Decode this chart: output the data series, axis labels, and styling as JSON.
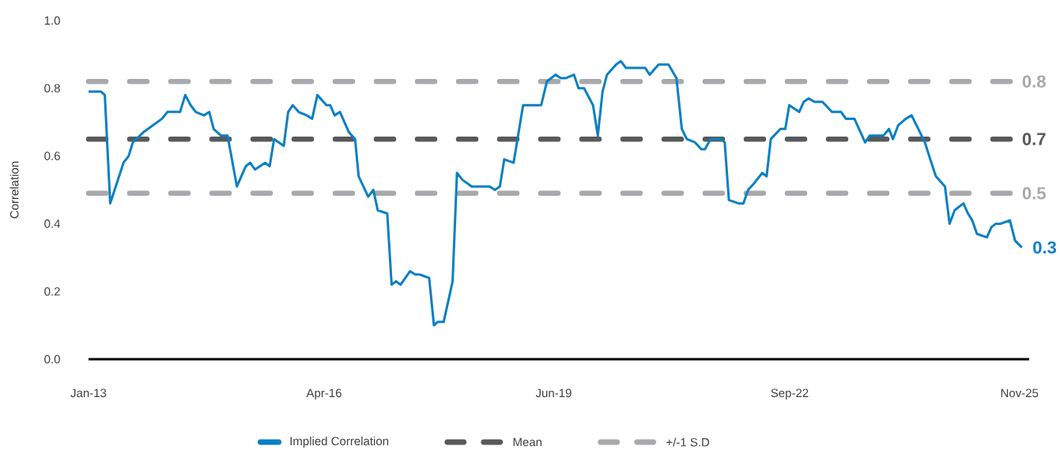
{
  "chart_data": {
    "type": "line",
    "ylabel": "Correlation",
    "x": [
      "2013-01-01",
      "2013-03-05",
      "2013-03-24",
      "2013-04-20",
      "2013-06-26",
      "2013-07-22",
      "2013-08-12",
      "2013-10-04",
      "2013-11-20",
      "2014-01-06",
      "2014-02-02",
      "2014-04-07",
      "2014-05-03",
      "2014-05-30",
      "2014-06-25",
      "2014-08-05",
      "2014-09-01",
      "2014-09-23",
      "2014-10-30",
      "2014-12-02",
      "2015-01-18",
      "2015-03-04",
      "2015-03-26",
      "2015-04-19",
      "2015-06-09",
      "2015-07-02",
      "2015-07-24",
      "2015-09-11",
      "2015-10-03",
      "2015-10-26",
      "2015-11-25",
      "2016-01-05",
      "2016-02-01",
      "2016-02-27",
      "2016-04-13",
      "2016-05-02",
      "2016-05-24",
      "2016-06-20",
      "2016-08-04",
      "2016-09-04",
      "2016-09-22",
      "2016-11-09",
      "2016-12-05",
      "2016-12-27",
      "2017-02-13",
      "2017-03-07",
      "2017-03-29",
      "2017-04-21",
      "2017-06-08",
      "2017-07-04",
      "2017-07-27",
      "2017-09-12",
      "2017-10-06",
      "2017-10-24",
      "2017-11-24",
      "2018-01-08",
      "2018-01-30",
      "2018-02-26",
      "2018-04-14",
      "2018-07-13",
      "2018-08-09",
      "2018-09-03",
      "2018-09-25",
      "2018-11-11",
      "2018-12-29",
      "2019-03-30",
      "2019-04-28",
      "2019-06-10",
      "2019-07-07",
      "2019-08-02",
      "2019-09-11",
      "2019-10-04",
      "2019-11-01",
      "2019-12-16",
      "2020-01-09",
      "2020-02-02",
      "2020-02-24",
      "2020-04-10",
      "2020-05-04",
      "2020-05-30",
      "2020-09-04",
      "2020-09-26",
      "2020-11-10",
      "2020-12-30",
      "2021-02-08",
      "2021-03-07",
      "2021-04-01",
      "2021-05-13",
      "2021-06-13",
      "2021-07-02",
      "2021-07-29",
      "2021-09-21",
      "2021-10-09",
      "2021-10-30",
      "2021-12-18",
      "2022-01-11",
      "2022-02-04",
      "2022-03-07",
      "2022-04-16",
      "2022-05-08",
      "2022-05-29",
      "2022-07-17",
      "2022-08-10",
      "2022-08-30",
      "2022-10-19",
      "2022-11-11",
      "2022-12-05",
      "2023-01-04",
      "2023-02-13",
      "2023-04-02",
      "2023-05-18",
      "2023-06-11",
      "2023-07-24",
      "2023-09-16",
      "2023-10-09",
      "2023-12-17",
      "2024-01-14",
      "2024-02-03",
      "2024-02-29",
      "2024-04-08",
      "2024-05-07",
      "2024-07-13",
      "2024-08-09",
      "2024-09-06",
      "2024-10-22",
      "2024-11-14",
      "2024-12-10",
      "2025-01-23",
      "2025-02-15",
      "2025-03-08",
      "2025-04-01",
      "2025-05-21",
      "2025-06-13",
      "2025-07-05",
      "2025-07-29",
      "2025-09-14",
      "2025-10-10",
      "2025-11-13"
    ],
    "series": [
      {
        "name": "Implied Correlation",
        "color": "#0a7fc4",
        "values": [
          0.79,
          0.79,
          0.78,
          0.46,
          0.58,
          0.6,
          0.64,
          0.67,
          0.69,
          0.71,
          0.73,
          0.73,
          0.78,
          0.75,
          0.73,
          0.72,
          0.73,
          0.68,
          0.66,
          0.66,
          0.51,
          0.57,
          0.58,
          0.56,
          0.58,
          0.57,
          0.65,
          0.63,
          0.73,
          0.75,
          0.73,
          0.72,
          0.71,
          0.78,
          0.75,
          0.75,
          0.72,
          0.73,
          0.67,
          0.65,
          0.54,
          0.48,
          0.5,
          0.44,
          0.43,
          0.22,
          0.23,
          0.22,
          0.26,
          0.25,
          0.25,
          0.24,
          0.1,
          0.11,
          0.11,
          0.23,
          0.55,
          0.53,
          0.51,
          0.51,
          0.5,
          0.51,
          0.59,
          0.58,
          0.75,
          0.75,
          0.82,
          0.84,
          0.83,
          0.83,
          0.84,
          0.8,
          0.8,
          0.75,
          0.66,
          0.79,
          0.84,
          0.87,
          0.88,
          0.86,
          0.86,
          0.84,
          0.87,
          0.87,
          0.83,
          0.68,
          0.65,
          0.64,
          0.62,
          0.62,
          0.65,
          0.65,
          0.64,
          0.47,
          0.46,
          0.46,
          0.5,
          0.52,
          0.55,
          0.54,
          0.65,
          0.68,
          0.68,
          0.75,
          0.73,
          0.76,
          0.77,
          0.76,
          0.76,
          0.73,
          0.73,
          0.71,
          0.71,
          0.64,
          0.66,
          0.66,
          0.68,
          0.65,
          0.69,
          0.71,
          0.72,
          0.64,
          0.59,
          0.54,
          0.51,
          0.4,
          0.44,
          0.46,
          0.43,
          0.41,
          0.37,
          0.36,
          0.39,
          0.4,
          0.4,
          0.41,
          0.35,
          0.33
        ]
      },
      {
        "name": "Mean",
        "color": "#58595b",
        "line_style": "dashed",
        "x": [
          "2013-01-01",
          "2025-09-21"
        ],
        "values": [
          0.65,
          0.65
        ]
      },
      {
        "name": "+/-1 S.D",
        "color": "#a7a9ac",
        "line_style": "dashed",
        "x": [
          "2013-01-01",
          "2025-09-21"
        ],
        "values": [
          0.82,
          0.82
        ]
      },
      {
        "color": "#a7a9ac",
        "line_style": "dashed",
        "x": [
          "2013-01-01",
          "2025-09-21"
        ],
        "values": [
          0.49,
          0.49
        ]
      }
    ],
    "xlim": [
      "2013-01-01",
      "2025-12-20"
    ],
    "ylim": [
      0,
      1
    ],
    "xticks": [
      {
        "value": "2013-01-01",
        "label": "Jan-13"
      },
      {
        "value": "2016-04-01",
        "label": "Apr-16"
      },
      {
        "value": "2019-06-01",
        "label": "Jun-19"
      },
      {
        "value": "2022-09-01",
        "label": "Sep-22"
      },
      {
        "value": "2025-11-01",
        "label": "Nov-25"
      }
    ],
    "yticks": [
      {
        "value": 0,
        "label": "0.0"
      },
      0.2,
      0.4,
      0.6,
      0.8,
      {
        "value": 1,
        "label": "1.0"
      }
    ],
    "annotations": [
      {
        "text": "0.8",
        "x": "2025-09-21",
        "y": 0.82
      },
      {
        "text": "0.7",
        "x": "2025-09-21",
        "y": 0.65
      },
      {
        "text": "0.5",
        "x": "2025-09-21",
        "y": 0.49
      },
      {
        "text": "0.3",
        "x": "2025-11-13",
        "y": 0.33
      }
    ],
    "legend": "bottom"
  }
}
